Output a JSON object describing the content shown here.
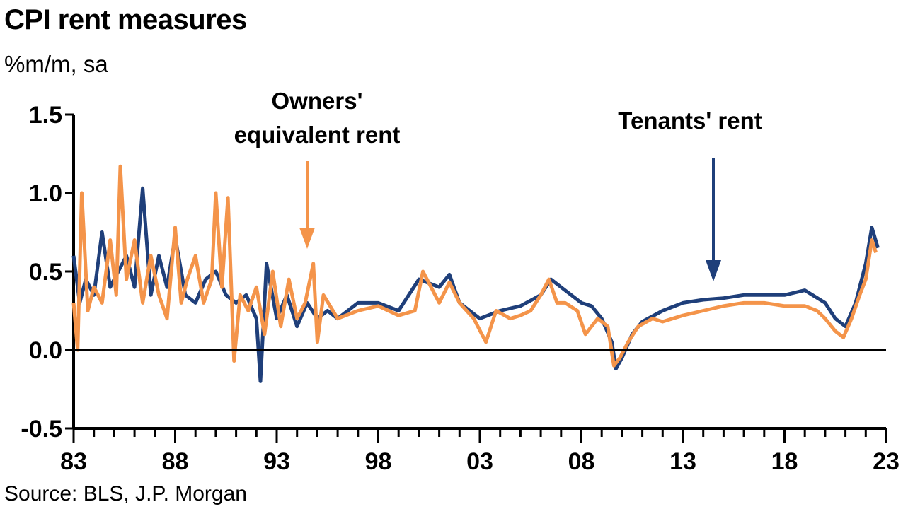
{
  "header": {
    "title": "CPI rent measures",
    "subtitle": "%m/m, sa"
  },
  "footer": {
    "source": "Source: BLS, J.P. Morgan"
  },
  "annotations": {
    "oer_line1": "Owners'",
    "oer_line2": "equivalent rent",
    "tenants": "Tenants' rent"
  },
  "chart_data": {
    "type": "line",
    "title": "CPI rent measures",
    "ylabel": "%m/m, sa",
    "ylim": [
      -0.5,
      1.5
    ],
    "yticks": [
      -0.5,
      0.0,
      0.5,
      1.0,
      1.5
    ],
    "ytick_labels": [
      "-0.5",
      "0.0",
      "0.5",
      "1.0",
      "1.5"
    ],
    "xlim": [
      1983,
      2023
    ],
    "xticks": [
      1983,
      1988,
      1993,
      1998,
      2003,
      2008,
      2013,
      2018,
      2023
    ],
    "xtick_labels": [
      "83",
      "88",
      "93",
      "98",
      "03",
      "08",
      "13",
      "18",
      "23"
    ],
    "grid": false,
    "legend": "none",
    "colors": {
      "tenants": "#1f3f7a",
      "oer": "#f4944a",
      "axis": "#000000"
    },
    "series": [
      {
        "name": "Tenants' rent",
        "color": "#1f3f7a",
        "x": [
          1983.0,
          1983.3,
          1983.6,
          1984.0,
          1984.4,
          1984.8,
          1985.2,
          1985.6,
          1986.0,
          1986.4,
          1986.8,
          1987.2,
          1987.6,
          1988.0,
          1988.5,
          1989.0,
          1989.5,
          1990.0,
          1990.5,
          1991.0,
          1991.5,
          1992.0,
          1992.2,
          1992.5,
          1993.0,
          1993.5,
          1994.0,
          1994.5,
          1995.0,
          1995.5,
          1996.0,
          1997.0,
          1998.0,
          1999.0,
          2000.0,
          2001.0,
          2001.5,
          2002.0,
          2003.0,
          2004.0,
          2005.0,
          2006.0,
          2006.5,
          2007.0,
          2007.5,
          2008.0,
          2008.5,
          2009.0,
          2009.5,
          2009.7,
          2010.0,
          2010.5,
          2011.0,
          2012.0,
          2013.0,
          2014.0,
          2015.0,
          2016.0,
          2017.0,
          2018.0,
          2019.0,
          2020.0,
          2020.5,
          2021.0,
          2021.5,
          2022.0,
          2022.3,
          2022.6
        ],
        "values": [
          0.6,
          0.3,
          0.45,
          0.35,
          0.75,
          0.4,
          0.5,
          0.6,
          0.4,
          1.03,
          0.35,
          0.6,
          0.4,
          0.72,
          0.35,
          0.3,
          0.45,
          0.5,
          0.35,
          0.3,
          0.35,
          0.2,
          -0.2,
          0.55,
          0.2,
          0.35,
          0.15,
          0.3,
          0.2,
          0.25,
          0.2,
          0.3,
          0.3,
          0.25,
          0.45,
          0.4,
          0.48,
          0.3,
          0.2,
          0.25,
          0.28,
          0.35,
          0.45,
          0.4,
          0.35,
          0.3,
          0.28,
          0.2,
          0.05,
          -0.12,
          -0.05,
          0.1,
          0.18,
          0.25,
          0.3,
          0.32,
          0.33,
          0.35,
          0.35,
          0.35,
          0.38,
          0.3,
          0.2,
          0.15,
          0.3,
          0.55,
          0.78,
          0.65
        ]
      },
      {
        "name": "Owners' equivalent rent",
        "color": "#f4944a",
        "x": [
          1983.0,
          1983.2,
          1983.4,
          1983.7,
          1984.0,
          1984.4,
          1984.8,
          1985.1,
          1985.3,
          1985.6,
          1986.0,
          1986.4,
          1986.8,
          1987.2,
          1987.6,
          1988.0,
          1988.3,
          1988.6,
          1989.0,
          1989.4,
          1989.8,
          1990.0,
          1990.3,
          1990.6,
          1990.9,
          1991.2,
          1991.6,
          1992.0,
          1992.4,
          1992.8,
          1993.2,
          1993.6,
          1994.0,
          1994.4,
          1994.8,
          1995.0,
          1995.3,
          1996.0,
          1997.0,
          1998.0,
          1999.0,
          1999.8,
          2000.2,
          2001.0,
          2001.5,
          2002.0,
          2002.7,
          2003.3,
          2003.8,
          2004.5,
          2005.0,
          2005.5,
          2006.0,
          2006.4,
          2006.8,
          2007.2,
          2007.8,
          2008.2,
          2008.8,
          2009.3,
          2009.6,
          2009.9,
          2010.3,
          2010.8,
          2011.5,
          2012.0,
          2013.0,
          2014.0,
          2015.0,
          2016.0,
          2017.0,
          2018.0,
          2019.0,
          2019.6,
          2020.0,
          2020.5,
          2020.9,
          2021.3,
          2021.7,
          2022.0,
          2022.3,
          2022.5
        ],
        "values": [
          0.3,
          0.0,
          1.0,
          0.25,
          0.4,
          0.3,
          0.7,
          0.35,
          1.17,
          0.45,
          0.7,
          0.3,
          0.6,
          0.35,
          0.2,
          0.78,
          0.3,
          0.45,
          0.6,
          0.3,
          0.45,
          1.0,
          0.4,
          0.97,
          -0.07,
          0.35,
          0.25,
          0.4,
          0.1,
          0.5,
          0.15,
          0.45,
          0.2,
          0.3,
          0.55,
          0.05,
          0.35,
          0.2,
          0.25,
          0.28,
          0.22,
          0.25,
          0.5,
          0.3,
          0.43,
          0.3,
          0.2,
          0.05,
          0.25,
          0.2,
          0.22,
          0.25,
          0.35,
          0.45,
          0.3,
          0.3,
          0.25,
          0.1,
          0.2,
          0.15,
          -0.1,
          -0.05,
          0.05,
          0.15,
          0.2,
          0.18,
          0.22,
          0.25,
          0.28,
          0.3,
          0.3,
          0.28,
          0.28,
          0.25,
          0.2,
          0.12,
          0.08,
          0.2,
          0.35,
          0.45,
          0.7,
          0.62
        ]
      }
    ]
  }
}
